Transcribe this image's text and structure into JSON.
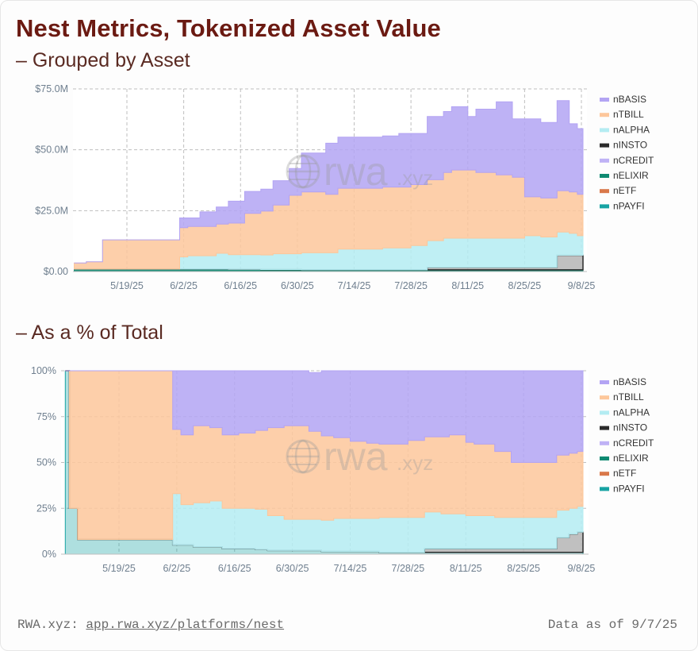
{
  "header": {
    "title": "Nest Metrics, Tokenized Asset Value",
    "subtitle_top": "– Grouped by Asset",
    "subtitle_bottom": "– As a % of Total"
  },
  "footer": {
    "source_prefix": "RWA.xyz:",
    "source_link": "app.rwa.xyz/platforms/nest",
    "as_of": "Data as of 9/7/25"
  },
  "watermark": {
    "main": "rwa",
    "suffix": ".xyz",
    "icon": "globe-icon"
  },
  "colors": {
    "nBASIS": "#b3a4f3",
    "nTBILL": "#fdc79b",
    "nALPHA": "#b4ecf2",
    "nINSTO": "#2b2b2b",
    "nCREDIT": "#bfb2f5",
    "nELIXIR": "#0f8a72",
    "nETF": "#d9784a",
    "nPAYFI": "#17a3a3"
  },
  "chart_data": [
    {
      "type": "area",
      "stacked": true,
      "title": "– Grouped by Asset",
      "x_ticks": [
        "5/19/25",
        "6/2/25",
        "6/16/25",
        "6/30/25",
        "7/14/25",
        "7/28/25",
        "8/11/25",
        "8/25/25",
        "9/8/25"
      ],
      "y_ticks": [
        "$0.00",
        "$25.0M",
        "$50.0M",
        "$75.0M"
      ],
      "ylim": [
        0,
        75
      ],
      "y_unit": "$M",
      "grid": true,
      "legend_position": "right",
      "legend": [
        "nBASIS",
        "nTBILL",
        "nALPHA",
        "nINSTO",
        "nCREDIT",
        "nELIXIR",
        "nETF",
        "nPAYFI"
      ],
      "x": [
        "5/6/25",
        "5/9/25",
        "5/13/25",
        "5/20/25",
        "5/27/25",
        "5/28/25",
        "6/1/25",
        "6/3/25",
        "6/6/25",
        "6/10/25",
        "6/13/25",
        "6/17/25",
        "6/21/25",
        "6/24/25",
        "6/28/25",
        "7/1/25",
        "7/4/25",
        "7/7/25",
        "7/10/25",
        "7/14/25",
        "7/18/25",
        "7/21/25",
        "7/25/25",
        "7/28/25",
        "8/1/25",
        "8/5/25",
        "8/7/25",
        "8/11/25",
        "8/13/25",
        "8/18/25",
        "8/22/25",
        "8/25/25",
        "8/29/25",
        "9/2/25",
        "9/5/25",
        "9/7/25"
      ],
      "series": [
        {
          "name": "nPAYFI",
          "values": [
            0.3,
            0.3,
            0.3,
            0.3,
            0.3,
            0.3,
            0.3,
            0.3,
            0.3,
            0.3,
            0.3,
            0.3,
            0.3,
            0.3,
            0.3,
            0.3,
            0.3,
            0.3,
            0.3,
            0.3,
            0.3,
            0.3,
            0.3,
            0.3,
            0.3,
            0.3,
            0.3,
            0.3,
            0.3,
            0.3,
            0.3,
            0.3,
            0.3,
            0.3,
            0.3,
            0.3
          ]
        },
        {
          "name": "nETF",
          "values": [
            0,
            0,
            0,
            0,
            0,
            0,
            0,
            0,
            0,
            0,
            0,
            0,
            0,
            0,
            0,
            0,
            0,
            0,
            0,
            0,
            0,
            0,
            0,
            0,
            0,
            0,
            0,
            0,
            0,
            0,
            0,
            0,
            0,
            0,
            0,
            0
          ]
        },
        {
          "name": "nELIXIR",
          "values": [
            0.7,
            0.7,
            0.7,
            0.7,
            0.7,
            0.7,
            0.7,
            0.7,
            0.7,
            0.7,
            0.6,
            0.6,
            0.5,
            0.5,
            0.5,
            0.4,
            0.4,
            0.4,
            0.4,
            0.4,
            0.4,
            0.4,
            0.4,
            0.4,
            0.4,
            0.4,
            0.4,
            0.4,
            0.4,
            0.4,
            0.4,
            0.4,
            0.4,
            0.4,
            0.4,
            0.4
          ]
        },
        {
          "name": "nCREDIT",
          "values": [
            0,
            0,
            0,
            0,
            0,
            0,
            0,
            0,
            0,
            0,
            0,
            0,
            0,
            0,
            0,
            0,
            0,
            0,
            0,
            0,
            0,
            0,
            0,
            0,
            0,
            0,
            0,
            0,
            0,
            0,
            0,
            0,
            0,
            0,
            0,
            0
          ]
        },
        {
          "name": "nINSTO",
          "values": [
            0,
            0,
            0,
            0,
            0,
            0,
            0,
            0,
            0,
            0,
            0,
            0,
            0,
            0,
            0,
            0,
            0,
            0,
            0,
            0,
            0,
            0,
            0,
            0,
            1.0,
            1.0,
            1.0,
            1.0,
            1.0,
            1.0,
            1.0,
            1.0,
            1.0,
            6.0,
            6.0,
            6.0
          ]
        },
        {
          "name": "nALPHA",
          "values": [
            0,
            0,
            0,
            0,
            0,
            0,
            5.0,
            5.5,
            5.5,
            6.5,
            6.0,
            6.0,
            6.0,
            6.5,
            6.5,
            7.0,
            7.0,
            7.0,
            8.5,
            8.5,
            8.5,
            9.0,
            9.0,
            10.0,
            11.0,
            12.0,
            12.0,
            12.0,
            12.0,
            12.0,
            12.0,
            13.0,
            12.5,
            9.5,
            9.0,
            8.0
          ]
        },
        {
          "name": "nTBILL",
          "values": [
            2.5,
            3.0,
            12.0,
            12.0,
            12.0,
            12.0,
            12.0,
            12.0,
            12.0,
            12.0,
            13.0,
            17.0,
            18.0,
            20.0,
            24.0,
            25.0,
            25.0,
            24.0,
            25.0,
            25.0,
            25.0,
            25.0,
            25.0,
            25.0,
            25.0,
            27.0,
            28.0,
            28.0,
            27.0,
            26.0,
            25.0,
            16.0,
            16.0,
            17.0,
            17.0,
            17.0
          ]
        },
        {
          "name": "nBASIS",
          "values": [
            0,
            0,
            0,
            0,
            0,
            0,
            4.0,
            3.5,
            6.0,
            7.0,
            9.0,
            9.0,
            9.0,
            10.0,
            11.0,
            16.0,
            16.0,
            21.0,
            21.0,
            21.0,
            21.0,
            21.0,
            22.0,
            21.0,
            26.0,
            25.0,
            26.0,
            22.0,
            26.0,
            30.0,
            24.0,
            32.0,
            31.0,
            37.0,
            28.0,
            27.0
          ]
        }
      ]
    },
    {
      "type": "area",
      "stacked": true,
      "normalized": true,
      "title": "– As a % of Total",
      "x_ticks": [
        "5/19/25",
        "6/2/25",
        "6/16/25",
        "6/30/25",
        "7/14/25",
        "7/28/25",
        "8/11/25",
        "8/25/25",
        "9/8/25"
      ],
      "y_ticks": [
        "0%",
        "25%",
        "50%",
        "75%",
        "100%"
      ],
      "ylim": [
        0,
        100
      ],
      "y_unit": "%",
      "grid": true,
      "legend_position": "right",
      "legend": [
        "nBASIS",
        "nTBILL",
        "nALPHA",
        "nINSTO",
        "nCREDIT",
        "nELIXIR",
        "nETF",
        "nPAYFI"
      ],
      "x": [
        "5/6/25",
        "5/7/25",
        "5/9/25",
        "5/13/25",
        "5/20/25",
        "5/27/25",
        "5/28/25",
        "6/1/25",
        "6/3/25",
        "6/6/25",
        "6/10/25",
        "6/13/25",
        "6/17/25",
        "6/21/25",
        "6/24/25",
        "6/28/25",
        "7/1/25",
        "7/4/25",
        "7/7/25",
        "7/10/25",
        "7/14/25",
        "7/18/25",
        "7/21/25",
        "7/25/25",
        "7/28/25",
        "8/1/25",
        "8/5/25",
        "8/7/25",
        "8/11/25",
        "8/13/25",
        "8/18/25",
        "8/22/25",
        "8/25/25",
        "8/29/25",
        "9/2/25",
        "9/5/25",
        "9/7/25"
      ],
      "series": [
        {
          "name": "nPAYFI",
          "values": [
            100,
            25,
            8,
            8,
            8,
            8,
            8,
            5,
            5,
            4,
            4,
            3,
            3,
            2.5,
            2,
            2,
            2,
            2,
            1.5,
            1.5,
            1.5,
            1.5,
            1,
            1,
            1,
            1,
            1,
            1,
            1,
            1,
            1,
            1,
            1,
            1,
            1,
            1,
            1
          ]
        },
        {
          "name": "nETF",
          "values": [
            0,
            0,
            0,
            0,
            0,
            0,
            0,
            0,
            0,
            0,
            0,
            0,
            0,
            0,
            0,
            0,
            0,
            0,
            0,
            0,
            0,
            0,
            0,
            0,
            0,
            0,
            0,
            0,
            0,
            0,
            0,
            0,
            0,
            0,
            0,
            0,
            0
          ]
        },
        {
          "name": "nELIXIR",
          "values": [
            0,
            0,
            0,
            0,
            0,
            0,
            0,
            0,
            0,
            0,
            0,
            0,
            0,
            0,
            0,
            0,
            0,
            0,
            0,
            0,
            0,
            0,
            0,
            0,
            0,
            0,
            0,
            0,
            0,
            0,
            0,
            0,
            0,
            0,
            0,
            0,
            0
          ]
        },
        {
          "name": "nCREDIT",
          "values": [
            0,
            0,
            0,
            0,
            0,
            0,
            0,
            0,
            0,
            0,
            0,
            0,
            0,
            0,
            0,
            0,
            0,
            0,
            0,
            0,
            0,
            0,
            0,
            0,
            0,
            0,
            0,
            0,
            0,
            0,
            0,
            0,
            0,
            0,
            0,
            0,
            0
          ]
        },
        {
          "name": "nINSTO",
          "values": [
            0,
            0,
            0,
            0,
            0,
            0,
            0,
            0,
            0,
            0,
            0,
            0,
            0,
            0,
            0,
            0,
            0,
            0,
            0,
            0,
            0,
            0,
            0,
            0,
            0,
            2,
            2,
            2,
            2,
            2,
            2,
            2,
            2,
            2,
            8,
            10,
            11
          ]
        },
        {
          "name": "nALPHA",
          "values": [
            0,
            0,
            0,
            0,
            0,
            0,
            0,
            28,
            22,
            24,
            25,
            22,
            22,
            22,
            19,
            17,
            17,
            17,
            17,
            18,
            18,
            18,
            19,
            19,
            19,
            20,
            19,
            19,
            18,
            18,
            17,
            17,
            17,
            17,
            15,
            14,
            14
          ]
        },
        {
          "name": "nTBILL",
          "values": [
            0,
            75,
            92,
            92,
            92,
            92,
            92,
            35,
            38,
            42,
            40,
            40,
            41,
            43,
            48,
            51,
            51,
            48,
            46,
            44,
            42,
            41,
            40,
            40,
            42,
            41,
            42,
            43,
            40,
            39,
            36,
            30,
            30,
            30,
            30,
            30,
            30
          ]
        },
        {
          "name": "nBASIS",
          "values": [
            0,
            0,
            0,
            0,
            0,
            0,
            0,
            32,
            35,
            30,
            31,
            35,
            34,
            32.5,
            31,
            30,
            30,
            32,
            35.5,
            36.5,
            38.5,
            39.5,
            40,
            40,
            38,
            36,
            36,
            35,
            39,
            40,
            44,
            50,
            50,
            50,
            46,
            45,
            44
          ]
        }
      ]
    }
  ]
}
